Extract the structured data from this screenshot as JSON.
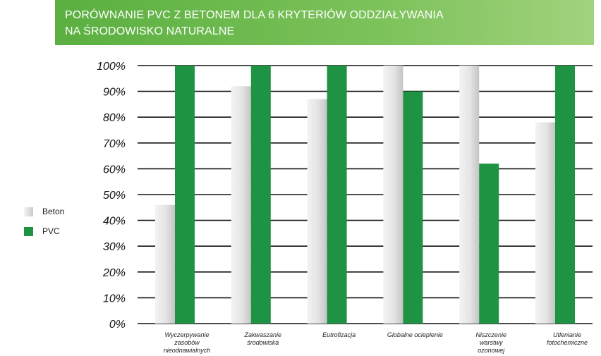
{
  "header": {
    "title_line1": "PORÓWNANIE PVC Z BETONEM DLA 6 KRYTERIÓW ODDZIAŁYWANIA",
    "title_line2": "NA ŚRODOWISKO NATURALNE"
  },
  "legend": {
    "placement": "left",
    "items": [
      {
        "label": "Beton",
        "color": "#d6d6d6"
      },
      {
        "label": "PVC",
        "color": "#1f9344"
      }
    ]
  },
  "chart_data": {
    "type": "bar",
    "title": "PORÓWNANIE PVC Z BETONEM DLA 6 KRYTERIÓW ODDZIAŁYWANIA NA ŚRODOWISKO NATURALNE",
    "categories": [
      [
        "Wyczerpywanie",
        "zasobów",
        "nieodnawialnych"
      ],
      [
        "Zakwaszanie",
        "środowiska"
      ],
      [
        "Eutrofizacja"
      ],
      [
        "Globalne ocieplenie"
      ],
      [
        "Niszczenie",
        "warstwy",
        "ozonowej"
      ],
      [
        "Utlenianie",
        "fotochemiczne"
      ]
    ],
    "series": [
      {
        "name": "Beton",
        "color": "#d6d6d6",
        "values": [
          46,
          92,
          87,
          100,
          100,
          78
        ]
      },
      {
        "name": "PVC",
        "color": "#1f9344",
        "values": [
          100,
          100,
          100,
          90,
          62,
          100
        ]
      }
    ],
    "yticks": [
      "0%",
      "10%",
      "20%",
      "30%",
      "40%",
      "50%",
      "60%",
      "70%",
      "80%",
      "90%",
      "100%"
    ],
    "ylim": [
      0,
      100
    ],
    "ylabel": "",
    "xlabel": "",
    "grid": true
  }
}
